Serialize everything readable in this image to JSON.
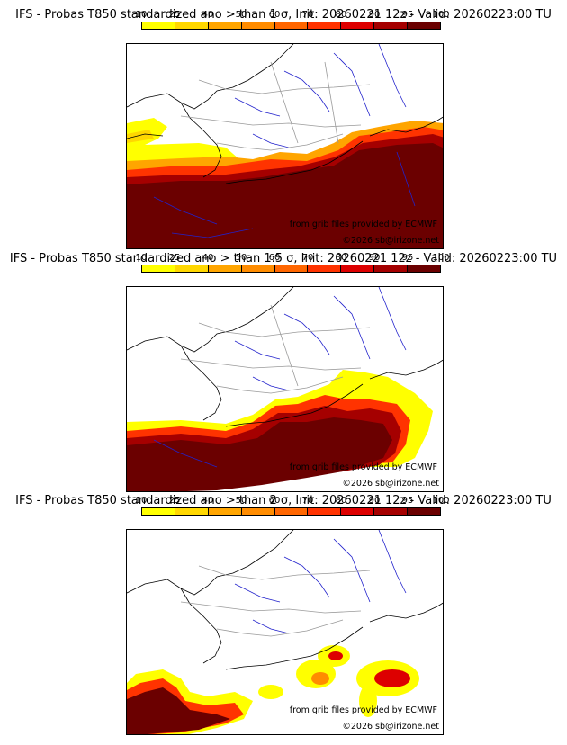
{
  "panels": [
    {
      "title": "IFS - Probas T850  standardized ano > than 1 σ, Init: 20260221 12z - Valid: 20260223:00 TU"
    },
    {
      "title": "IFS - Probas T850  standardized ano > than 1.5 σ, Init: 20260221 12z - Valid: 20260223:00 TU"
    },
    {
      "title": "IFS - Probas T850  standardized ano > than 2 σ, Init: 20260221 12z - Valid: 20260223:00 TU"
    }
  ],
  "colorbar": {
    "ticks": [
      "10",
      "25",
      "40",
      "50",
      "60",
      "70",
      "80",
      "90",
      "95",
      "100"
    ],
    "colors": [
      "#ffff00",
      "#ffd700",
      "#ffa500",
      "#ff8c00",
      "#ff6600",
      "#ff3300",
      "#dd0000",
      "#a50000",
      "#6b0000"
    ]
  },
  "credits": {
    "source": "from grib files provided by ECMWF",
    "copyright": "©2026 sb@irizone.net"
  },
  "colors": {
    "coast": "#000000",
    "rivers": "#2222cc",
    "borders": "#9a9a9a"
  }
}
